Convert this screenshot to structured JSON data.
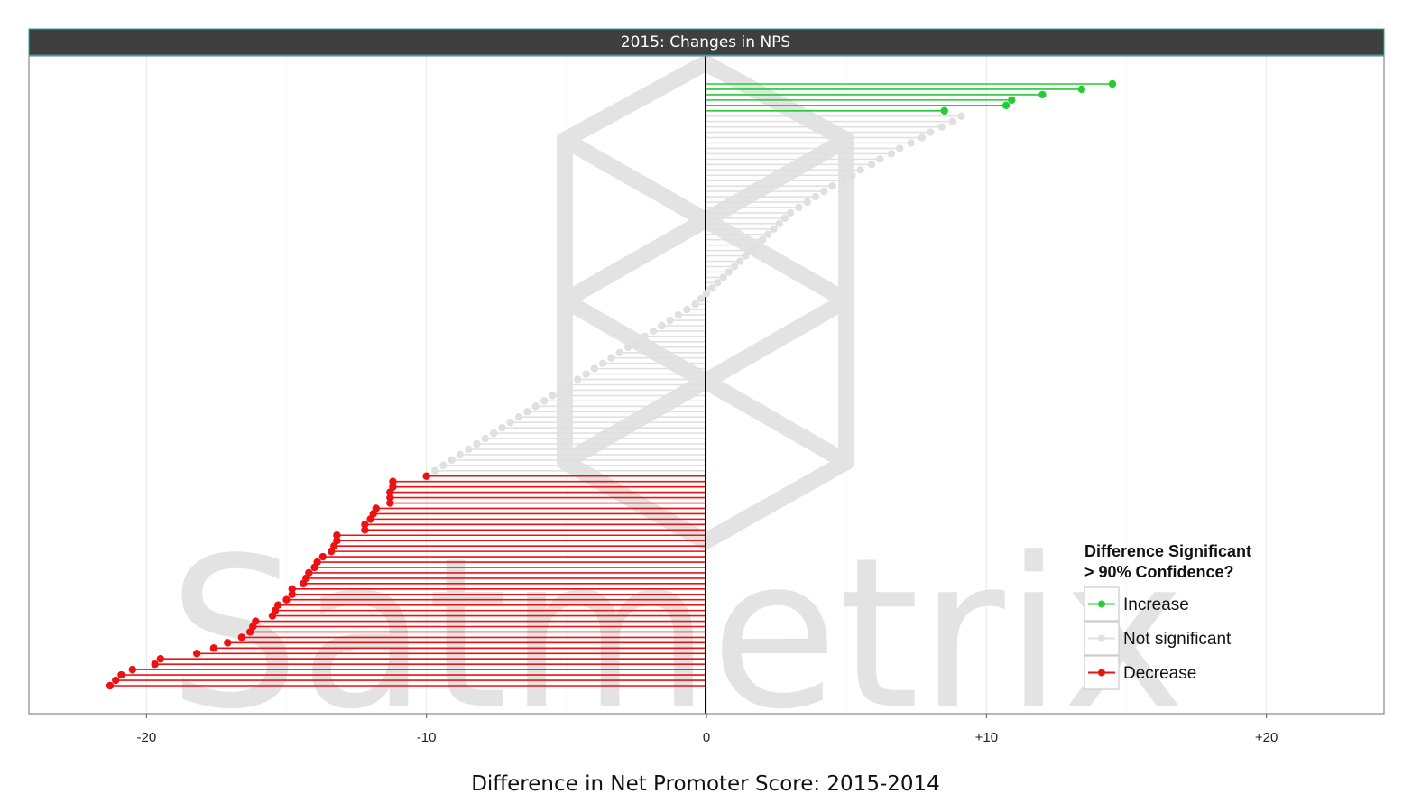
{
  "chart_data": {
    "type": "lollipop",
    "panel_title": "2015: Changes in NPS",
    "xlabel": "Difference in Net Promoter Score: 2015-2014",
    "ylabel": "",
    "xlim": [
      -24.2,
      24.2
    ],
    "x_ticks": [
      {
        "value": -20,
        "label": "-20"
      },
      {
        "value": -10,
        "label": "-10"
      },
      {
        "value": 0,
        "label": "0"
      },
      {
        "value": 10,
        "label": "+10"
      },
      {
        "value": 20,
        "label": "+20"
      }
    ],
    "grid": true,
    "watermark": "Satmetrix",
    "legend": {
      "title_lines": [
        "Difference Significant",
        "> 90% Confidence?"
      ],
      "position": "bottom-right",
      "entries": [
        {
          "label": "Increase",
          "color": "#22cc33"
        },
        {
          "label": "Not significant",
          "color": "#e0e0e0"
        },
        {
          "label": "Decrease",
          "color": "#ee1111"
        }
      ]
    },
    "colors": {
      "increase": "#22cc33",
      "not_significant": "#e0e0e0",
      "decrease": "#ee1111"
    },
    "series": [
      {
        "name": "Increase",
        "values": [
          14.5,
          13.4,
          12.0,
          10.9,
          10.7,
          8.5
        ]
      },
      {
        "name": "Not significant",
        "values": [
          9.1,
          8.8,
          8.4,
          8.0,
          7.7,
          7.3,
          6.9,
          6.6,
          6.2,
          5.9,
          5.5,
          5.2,
          4.9,
          4.5,
          4.2,
          3.9,
          3.6,
          3.3,
          3.0,
          2.8,
          2.6,
          2.4,
          2.2,
          2.0,
          1.8,
          1.6,
          1.4,
          1.2,
          1.0,
          0.8,
          0.6,
          0.4,
          0.2,
          0.0,
          -0.2,
          -0.4,
          -0.7,
          -1.0,
          -1.3,
          -1.6,
          -1.9,
          -2.2,
          -2.5,
          -2.8,
          -3.1,
          -3.4,
          -3.7,
          -4.0,
          -4.3,
          -4.6,
          -4.9,
          -5.2,
          -5.5,
          -5.8,
          -6.1,
          -6.4,
          -6.7,
          -7.0,
          -7.3,
          -7.6,
          -7.9,
          -8.2,
          -8.5,
          -8.8,
          -9.1,
          -9.4,
          -9.7
        ]
      },
      {
        "name": "Decrease",
        "values": [
          -10.0,
          -11.2,
          -11.2,
          -11.3,
          -11.3,
          -11.3,
          -11.8,
          -11.9,
          -12.0,
          -12.2,
          -12.2,
          -13.2,
          -13.2,
          -13.3,
          -13.4,
          -13.7,
          -13.9,
          -14.0,
          -14.2,
          -14.3,
          -14.4,
          -14.8,
          -14.8,
          -15.0,
          -15.3,
          -15.4,
          -15.5,
          -16.1,
          -16.2,
          -16.3,
          -16.6,
          -17.1,
          -17.6,
          -18.2,
          -19.5,
          -19.7,
          -20.5,
          -20.9,
          -21.1,
          -21.3
        ]
      }
    ]
  }
}
